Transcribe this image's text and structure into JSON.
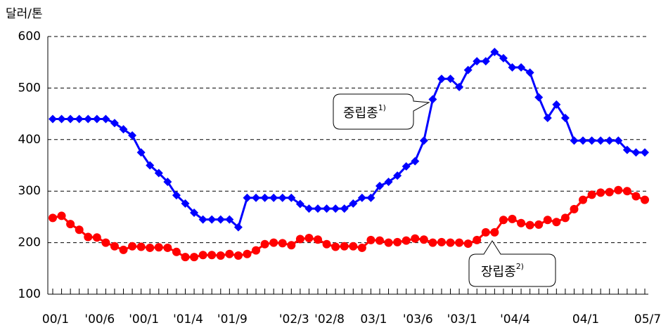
{
  "chart_data": {
    "type": "line",
    "y_label": "달러/톤",
    "categories": [
      "00/1",
      null,
      null,
      null,
      null,
      "'00/6",
      null,
      null,
      null,
      null,
      "'00/1",
      null,
      null,
      null,
      null,
      "'01/4",
      null,
      null,
      null,
      null,
      "'01/9",
      null,
      null,
      null,
      null,
      null,
      null,
      "'02/3",
      null,
      null,
      null,
      "'02/8",
      null,
      null,
      null,
      null,
      "03/1",
      null,
      null,
      null,
      null,
      "'03/6",
      null,
      null,
      null,
      null,
      "'03/1",
      null,
      null,
      null,
      null,
      null,
      "'04/4",
      null,
      null,
      null,
      null,
      null,
      null,
      null,
      "04/1",
      null,
      null,
      null,
      null,
      null,
      null,
      "05/7"
    ],
    "series": [
      {
        "name": "중립종",
        "sup": "1)",
        "color": "#0000ff",
        "marker": "diamond",
        "values": [
          440,
          440,
          440,
          440,
          440,
          440,
          440,
          432,
          420,
          408,
          375,
          350,
          335,
          318,
          292,
          276,
          258,
          245,
          245,
          245,
          245,
          230,
          287,
          287,
          287,
          287,
          287,
          287,
          275,
          266,
          266,
          266,
          266,
          266,
          276,
          287,
          287,
          310,
          318,
          330,
          348,
          358,
          398,
          478,
          518,
          518,
          502,
          535,
          552,
          552,
          570,
          558,
          540,
          540,
          530,
          482,
          442,
          468,
          442,
          398,
          398,
          398,
          398,
          398,
          398,
          380,
          375,
          375
        ]
      },
      {
        "name": "장립종",
        "sup": "2)",
        "color": "#ff0000",
        "marker": "circle",
        "values": [
          248,
          252,
          236,
          225,
          211,
          210,
          200,
          193,
          186,
          193,
          192,
          190,
          191,
          190,
          182,
          172,
          172,
          176,
          176,
          175,
          178,
          175,
          178,
          185,
          197,
          200,
          199,
          195,
          207,
          209,
          206,
          197,
          192,
          193,
          193,
          190,
          205,
          204,
          200,
          201,
          204,
          208,
          206,
          200,
          201,
          200,
          200,
          198,
          205,
          220,
          220,
          244,
          246,
          238,
          234,
          235,
          244,
          240,
          248,
          265,
          283,
          293,
          297,
          298,
          302,
          300,
          290,
          283
        ]
      }
    ],
    "ylim": [
      100,
      600
    ],
    "yticks": [
      100,
      200,
      300,
      400,
      500,
      600
    ],
    "grid": true
  }
}
